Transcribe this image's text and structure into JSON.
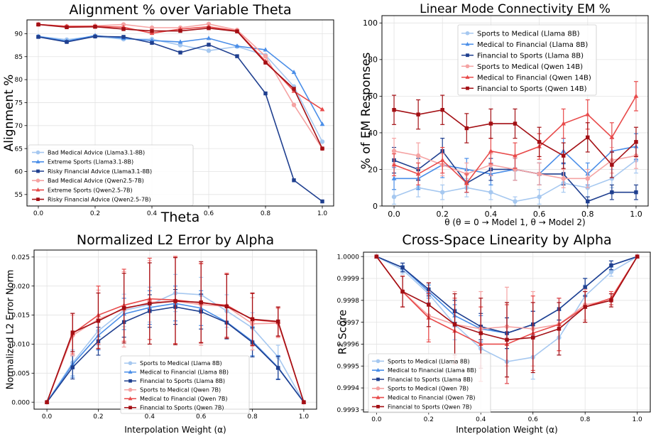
{
  "colors": {
    "light_blue": "#a6c8f0",
    "mid_blue": "#4a8ee8",
    "dark_blue": "#1f3f8f",
    "light_red": "#f5a3a3",
    "mid_red": "#e84a4a",
    "dark_red": "#a30f14"
  },
  "chart_data": [
    {
      "type": "line",
      "title": "Alignment % over Variable Theta",
      "xlabel": "Theta",
      "ylabel": "Alignment %",
      "xlim": [
        -0.04,
        1.04
      ],
      "ylim": [
        52.5,
        93
      ],
      "xticks": [
        0.0,
        0.2,
        0.4,
        0.6,
        0.8,
        1.0
      ],
      "xtick_labels": [
        "0.0",
        "0.2",
        "0.4",
        "0.6",
        "0.8",
        "1.0"
      ],
      "yticks": [
        55,
        60,
        65,
        70,
        75,
        80,
        85,
        90
      ],
      "ytick_labels": [
        "55",
        "60",
        "65",
        "70",
        "75",
        "80",
        "85",
        "90"
      ],
      "grid": true,
      "legend": "lower-left",
      "x": [
        0.0,
        0.1,
        0.2,
        0.3,
        0.4,
        0.5,
        0.6,
        0.7,
        0.8,
        0.9,
        1.0
      ],
      "series": [
        {
          "name": "Bad Medical Advice (Llama3.1-8B)",
          "color": "#a6c8f0",
          "marker": "circle",
          "values": [
            89.4,
            88.7,
            89.4,
            88.8,
            88.8,
            87.5,
            86.3,
            87.2,
            85.3,
            78.5,
            66.5
          ]
        },
        {
          "name": "Extreme Sports (Llama3.1-8B)",
          "color": "#4a8ee8",
          "marker": "triangle",
          "values": [
            89.4,
            88.4,
            89.6,
            89.0,
            88.5,
            88.2,
            89.0,
            87.3,
            86.5,
            81.6,
            70.3
          ]
        },
        {
          "name": "Risky Financial Advice (Llama3.1-8B)",
          "color": "#1f3f8f",
          "marker": "square",
          "values": [
            89.3,
            88.2,
            89.4,
            89.3,
            88.0,
            85.9,
            87.6,
            85.1,
            77.0,
            58.1,
            53.5
          ]
        },
        {
          "name": "Bad Medical Advice (Qwen2.5-7B)",
          "color": "#f5a3a3",
          "marker": "circle",
          "values": [
            92.0,
            91.6,
            91.7,
            92.0,
            91.3,
            91.3,
            92.1,
            90.8,
            85.1,
            74.5,
            65.0
          ]
        },
        {
          "name": "Extreme Sports (Qwen2.5-7B)",
          "color": "#e84a4a",
          "marker": "triangle",
          "values": [
            92.0,
            91.6,
            91.6,
            91.4,
            90.1,
            91.0,
            91.5,
            90.6,
            84.0,
            77.5,
            73.5
          ]
        },
        {
          "name": "Risky Financial Advice (Qwen2.5-7B)",
          "color": "#a30f14",
          "marker": "square",
          "values": [
            92.0,
            91.4,
            91.5,
            91.0,
            90.6,
            90.6,
            91.2,
            90.5,
            83.7,
            78.0,
            65.0
          ]
        }
      ]
    },
    {
      "type": "line",
      "title": "Linear Mode Connectivity EM %",
      "xlabel": "θ (θ = 0 → Model 1, θ → Model 2)",
      "ylabel": "% of EM Responses",
      "xlim": [
        -0.05,
        1.05
      ],
      "ylim": [
        0,
        104
      ],
      "xticks": [
        0.0,
        0.2,
        0.4,
        0.6,
        0.8,
        1.0
      ],
      "xtick_labels": [
        "0.0",
        "0.2",
        "0.4",
        "0.6",
        "0.8",
        "1.0"
      ],
      "yticks": [
        0,
        20,
        40,
        60,
        80,
        100
      ],
      "ytick_labels": [
        "0",
        "20",
        "40",
        "60",
        "80",
        "100"
      ],
      "grid": true,
      "legend": "top-left",
      "error_bars": true,
      "x": [
        0.0,
        0.1,
        0.2,
        0.3,
        0.4,
        0.5,
        0.6,
        0.7,
        0.8,
        0.9,
        1.0
      ],
      "series": [
        {
          "name": "Sports to Medical (Llama 8B)",
          "color": "#a6c8f0",
          "marker": "circle",
          "values": [
            5.0,
            10.0,
            7.5,
            10.0,
            7.5,
            2.5,
            5.0,
            12.5,
            10.0,
            15.0,
            25.0
          ],
          "err": [
            4,
            5,
            4,
            5,
            4,
            2.5,
            4,
            5,
            5,
            5,
            7
          ]
        },
        {
          "name": "Medical to Financial (Llama 8B)",
          "color": "#4a8ee8",
          "marker": "triangle",
          "values": [
            15.0,
            15.0,
            22.5,
            20.0,
            17.5,
            20.0,
            17.5,
            30.0,
            17.5,
            30.0,
            32.5
          ],
          "err": [
            6,
            6,
            7,
            6,
            6,
            6,
            6,
            7,
            6,
            7,
            7
          ]
        },
        {
          "name": "Financial to Sports (Llama 8B)",
          "color": "#1f3f8f",
          "marker": "square",
          "values": [
            25.0,
            20.0,
            30.0,
            12.5,
            20.0,
            20.0,
            17.5,
            17.5,
            2.5,
            7.5,
            7.5
          ],
          "err": [
            7,
            6,
            7,
            5,
            6,
            6,
            6,
            6,
            2.5,
            4,
            4
          ]
        },
        {
          "name": "Sports to Medical (Qwen 14B)",
          "color": "#f5a3a3",
          "marker": "circle",
          "values": [
            30.0,
            27.5,
            22.5,
            17.5,
            22.5,
            20.0,
            17.5,
            15.0,
            15.0,
            25.0,
            27.5
          ],
          "err": [
            7,
            7,
            6,
            6,
            6,
            6,
            6,
            5,
            5,
            7,
            7
          ]
        },
        {
          "name": "Medical to Financial (Qwen 14B)",
          "color": "#e84a4a",
          "marker": "triangle",
          "values": [
            22.5,
            17.5,
            25.0,
            12.5,
            30.0,
            27.5,
            32.5,
            45.0,
            50.0,
            37.5,
            60.0
          ],
          "err": [
            6,
            6,
            7,
            5,
            7,
            7,
            7,
            8,
            8,
            8,
            8
          ]
        },
        {
          "name": "Financial to Sports (Qwen 14B)",
          "color": "#a30f14",
          "marker": "square",
          "values": [
            52.5,
            50.0,
            52.5,
            42.5,
            45.0,
            45.0,
            35.0,
            27.5,
            37.5,
            22.5,
            35.0
          ],
          "err": [
            8,
            8,
            8,
            8,
            8,
            8,
            8,
            7,
            8,
            7,
            8
          ]
        }
      ]
    },
    {
      "type": "line",
      "title": "Normalized L2 Error by Alpha",
      "xlabel": "Interpolation Weight (α)",
      "ylabel": "Normalized L2 Error Norm",
      "xlim": [
        -0.05,
        1.05
      ],
      "ylim": [
        -0.0012,
        0.0262
      ],
      "xticks": [
        0.0,
        0.2,
        0.4,
        0.6,
        0.8,
        1.0
      ],
      "xtick_labels": [
        "0.0",
        "0.2",
        "0.4",
        "0.6",
        "0.8",
        "1.0"
      ],
      "yticks": [
        0.0,
        0.005,
        0.01,
        0.015,
        0.02,
        0.025
      ],
      "ytick_labels": [
        "0.000",
        "0.005",
        "0.010",
        "0.015",
        "0.020",
        "0.025"
      ],
      "grid": true,
      "legend": "lower-center",
      "error_bars": true,
      "x": [
        0.0,
        0.1,
        0.2,
        0.3,
        0.4,
        0.5,
        0.6,
        0.7,
        0.8,
        0.9,
        1.0
      ],
      "series": [
        {
          "name": "Sports to Medical (Llama 8B)",
          "color": "#a6c8f0",
          "marker": "circle",
          "values": [
            0.0,
            0.0068,
            0.0123,
            0.0158,
            0.0168,
            0.0188,
            0.0185,
            0.0157,
            0.0128,
            0.0078,
            0.0
          ],
          "err": [
            0,
            0.0022,
            0.0025,
            0.0028,
            0.003,
            0.0032,
            0.003,
            0.0028,
            0.0026,
            0.002,
            0
          ]
        },
        {
          "name": "Medical to Financial (Llama 8B)",
          "color": "#4a8ee8",
          "marker": "triangle",
          "values": [
            0.0,
            0.0065,
            0.0115,
            0.0152,
            0.0163,
            0.017,
            0.0162,
            0.0138,
            0.0105,
            0.006,
            0.0
          ],
          "err": [
            0,
            0.0022,
            0.0025,
            0.0027,
            0.0029,
            0.003,
            0.003,
            0.0028,
            0.0025,
            0.002,
            0
          ]
        },
        {
          "name": "Financial to Sports (Llama 8B)",
          "color": "#1f3f8f",
          "marker": "square",
          "values": [
            0.0,
            0.006,
            0.0105,
            0.0138,
            0.0157,
            0.0164,
            0.0156,
            0.0137,
            0.0103,
            0.0059,
            0.0
          ],
          "err": [
            0,
            0.002,
            0.0024,
            0.0026,
            0.0028,
            0.003,
            0.003,
            0.0028,
            0.0025,
            0.002,
            0
          ]
        },
        {
          "name": "Sports to Medical (Qwen 7B)",
          "color": "#f5a3a3",
          "marker": "circle",
          "values": [
            0.0,
            0.0115,
            0.0143,
            0.016,
            0.0172,
            0.0174,
            0.0168,
            0.0165,
            0.0135,
            0.0136,
            0.0
          ],
          "err": [
            0,
            0.0035,
            0.005,
            0.0065,
            0.0072,
            0.0075,
            0.007,
            0.0055,
            0.0045,
            0.0025,
            0
          ]
        },
        {
          "name": "Medical to Financial (Qwen 7B)",
          "color": "#e84a4a",
          "marker": "triangle",
          "values": [
            0.0,
            0.0118,
            0.015,
            0.0167,
            0.0178,
            0.0176,
            0.0171,
            0.0167,
            0.0142,
            0.0138,
            0.0
          ],
          "err": [
            0,
            0.0035,
            0.005,
            0.0062,
            0.007,
            0.0075,
            0.0068,
            0.0055,
            0.0045,
            0.0025,
            0
          ]
        },
        {
          "name": "Financial to Sports (Qwen 7B)",
          "color": "#a30f14",
          "marker": "square",
          "values": [
            0.0,
            0.012,
            0.014,
            0.0162,
            0.017,
            0.0174,
            0.0172,
            0.0165,
            0.0143,
            0.0139,
            0.0
          ],
          "err": [
            0,
            0.0033,
            0.0048,
            0.006,
            0.007,
            0.0075,
            0.007,
            0.0055,
            0.0045,
            0.0025,
            0
          ]
        }
      ]
    },
    {
      "type": "line",
      "title": "Cross-Space Linearity by Alpha",
      "xlabel": "Interpolation Weight (α)",
      "ylabel": "R² Score",
      "xlim": [
        -0.05,
        1.05
      ],
      "ylim": [
        0.99929,
        1.00002
      ],
      "xticks": [
        0.0,
        0.2,
        0.4,
        0.6,
        0.8,
        1.0
      ],
      "xtick_labels": [
        "0.0",
        "0.2",
        "0.4",
        "0.6",
        "0.8",
        "1.0"
      ],
      "yticks": [
        0.9993,
        0.9994,
        0.9995,
        0.9996,
        0.9997,
        0.9998,
        0.9999,
        1.0
      ],
      "ytick_labels": [
        "0.9993",
        "0.9994",
        "0.9995",
        "0.9996",
        "0.9997",
        "0.9998",
        "0.9999",
        "1.0000"
      ],
      "grid": true,
      "legend": "lower-left",
      "error_bars": true,
      "x": [
        0.0,
        0.1,
        0.2,
        0.3,
        0.4,
        0.5,
        0.6,
        0.7,
        0.8,
        0.9,
        1.0
      ],
      "series": [
        {
          "name": "Sports to Medical (Llama 8B)",
          "color": "#a6c8f0",
          "marker": "circle",
          "values": [
            1.0,
            0.99994,
            0.99983,
            0.99969,
            0.99958,
            0.99952,
            0.99954,
            0.99963,
            0.99982,
            0.99993,
            1.0
          ],
          "err": [
            0,
            2e-05,
            4e-05,
            7e-05,
            9e-05,
            0.0001,
            0.0001,
            8e-05,
            5e-05,
            2e-05,
            0
          ]
        },
        {
          "name": "Medical to Financial (Llama 8B)",
          "color": "#4a8ee8",
          "marker": "triangle",
          "values": [
            1.0,
            0.99995,
            0.99984,
            0.99973,
            0.99967,
            0.99965,
            0.99969,
            0.99976,
            0.99986,
            0.99996,
            1.0
          ],
          "err": [
            0,
            2e-05,
            3e-05,
            5e-05,
            6e-05,
            7e-05,
            6e-05,
            5e-05,
            4e-05,
            2e-05,
            0
          ]
        },
        {
          "name": "Financial to Sports (Llama 8B)",
          "color": "#1f3f8f",
          "marker": "square",
          "values": [
            1.0,
            0.99995,
            0.99985,
            0.99975,
            0.99968,
            0.99965,
            0.99969,
            0.99976,
            0.99986,
            0.99996,
            1.0
          ],
          "err": [
            0,
            2e-05,
            3e-05,
            5e-05,
            6e-05,
            7e-05,
            6e-05,
            5e-05,
            4e-05,
            2e-05,
            0
          ]
        },
        {
          "name": "Sports to Medical (Qwen 7B)",
          "color": "#f5a3a3",
          "marker": "circle",
          "values": [
            1.0,
            0.99984,
            0.99973,
            0.99969,
            0.99967,
            0.99968,
            0.99967,
            0.99969,
            0.99978,
            0.9998,
            1.0
          ],
          "err": [
            0,
            7e-05,
            0.00011,
            0.00015,
            0.00017,
            0.00018,
            0.00017,
            0.00012,
            7e-05,
            3e-05,
            0
          ]
        },
        {
          "name": "Medical to Financial (Qwen 7B)",
          "color": "#e84a4a",
          "marker": "triangle",
          "values": [
            1.0,
            0.99984,
            0.99972,
            0.99966,
            0.9996,
            0.9996,
            0.99965,
            0.99969,
            0.99977,
            0.99981,
            1.0
          ],
          "err": [
            0,
            7e-05,
            0.00011,
            0.00015,
            0.00017,
            0.00018,
            0.00017,
            0.00012,
            7e-05,
            3e-05,
            0
          ]
        },
        {
          "name": "Financial to Sports (Qwen 7B)",
          "color": "#a30f14",
          "marker": "square",
          "values": [
            1.0,
            0.99984,
            0.99978,
            0.99969,
            0.99965,
            0.99962,
            0.99963,
            0.99967,
            0.99977,
            0.9998,
            1.0
          ],
          "err": [
            0,
            7e-05,
            0.0001,
            0.00014,
            0.00016,
            0.00017,
            0.00016,
            0.00012,
            7e-05,
            3e-05,
            0
          ]
        }
      ]
    }
  ]
}
